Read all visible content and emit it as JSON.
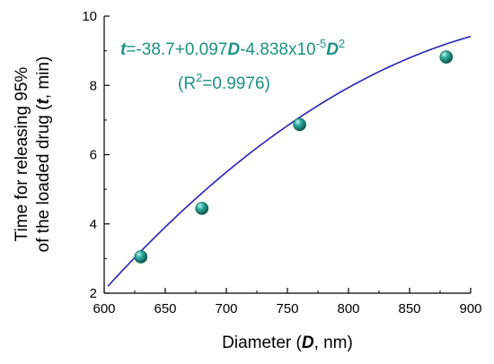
{
  "chart_data": {
    "type": "scatter",
    "xlabel": {
      "prefix": "Diameter (",
      "var": "D",
      "suffix": ", nm)"
    },
    "ylabel": {
      "line1": "Time for releasing 95%",
      "line2_prefix": "of the loaded drug (",
      "line2_var": "t",
      "line2_suffix": ", min)"
    },
    "xlim": [
      600,
      900
    ],
    "ylim": [
      2,
      10
    ],
    "xticks": [
      600,
      650,
      700,
      750,
      800,
      850,
      900
    ],
    "yticks": [
      2,
      4,
      6,
      8,
      10
    ],
    "points": [
      {
        "x": 630,
        "y": 3.05
      },
      {
        "x": 680,
        "y": 4.45
      },
      {
        "x": 760,
        "y": 6.87
      },
      {
        "x": 880,
        "y": 8.82
      }
    ],
    "fit": {
      "a": -38.7,
      "b": 0.097,
      "c": -4.838e-05,
      "x_range": [
        603,
        900
      ]
    },
    "equation": {
      "var_t": "t",
      "body": "=-38.7+0.097",
      "var_D": "D",
      "mid": "-4.838x10",
      "exp": "-5",
      "var_D2": "D",
      "pow": "2"
    },
    "r2": {
      "prefix": "(R",
      "sup": "2",
      "suffix": "=0.9976)"
    },
    "colors": {
      "point": "#1a9187",
      "fit_line": "#2323b8",
      "equation": "#1a9187",
      "axis": "#000000"
    },
    "grid": false
  }
}
